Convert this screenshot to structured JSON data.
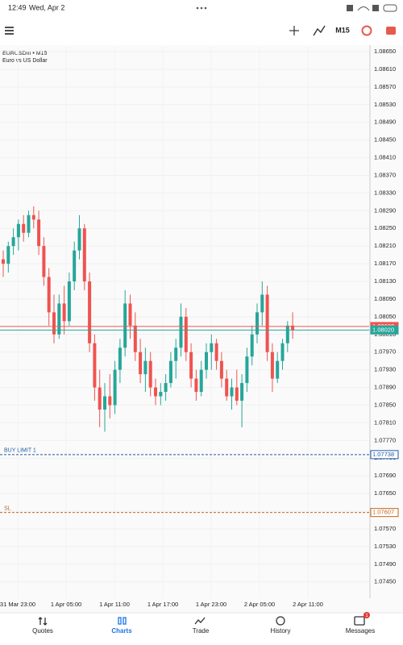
{
  "status_bar": {
    "time": "12:49",
    "date": "Wed, Apr 2"
  },
  "toolbar": {
    "timeframe": "M15"
  },
  "chart": {
    "type": "candlestick",
    "symbol": "EURUSDm • M15",
    "description": "Euro vs US Dollar",
    "up_color": "#26a69a",
    "down_color": "#ef5350",
    "grid": true,
    "ylim": [
      1.07413,
      1.08661
    ],
    "yticks": [
      {
        "value": 1.0865,
        "label": "1.08650"
      },
      {
        "value": 1.0861,
        "label": "1.08610"
      },
      {
        "value": 1.0857,
        "label": "1.08570"
      },
      {
        "value": 1.0853,
        "label": "1.08530"
      },
      {
        "value": 1.0849,
        "label": "1.08490"
      },
      {
        "value": 1.0845,
        "label": "1.08450"
      },
      {
        "value": 1.0841,
        "label": "1.08410"
      },
      {
        "value": 1.0837,
        "label": "1.08370"
      },
      {
        "value": 1.0833,
        "label": "1.08330"
      },
      {
        "value": 1.0829,
        "label": "1.08290"
      },
      {
        "value": 1.0825,
        "label": "1.08250"
      },
      {
        "value": 1.0821,
        "label": "1.08210"
      },
      {
        "value": 1.0817,
        "label": "1.08170"
      },
      {
        "value": 1.0813,
        "label": "1.08130"
      },
      {
        "value": 1.0809,
        "label": "1.08090"
      },
      {
        "value": 1.0805,
        "label": "1.08050"
      },
      {
        "value": 1.0801,
        "label": "1.08010"
      },
      {
        "value": 1.0797,
        "label": "1.07970"
      },
      {
        "value": 1.0793,
        "label": "1.07930"
      },
      {
        "value": 1.0789,
        "label": "1.07890"
      },
      {
        "value": 1.0785,
        "label": "1.07850"
      },
      {
        "value": 1.0781,
        "label": "1.07810"
      },
      {
        "value": 1.0777,
        "label": "1.07770"
      },
      {
        "value": 1.0773,
        "label": "1.07730"
      },
      {
        "value": 1.0769,
        "label": "1.07690"
      },
      {
        "value": 1.0765,
        "label": "1.07650"
      },
      {
        "value": 1.0761,
        "label": "1.07610"
      },
      {
        "value": 1.0757,
        "label": "1.07570"
      },
      {
        "value": 1.0753,
        "label": "1.07530"
      },
      {
        "value": 1.0749,
        "label": "1.07490"
      },
      {
        "value": 1.0745,
        "label": "1.07450"
      }
    ],
    "xticks": [
      "31 Mar 23:00",
      "1 Apr 05:00",
      "1 Apr 11:00",
      "1 Apr 17:00",
      "1 Apr 23:00",
      "2 Apr 05:00",
      "2 Apr 11:00"
    ],
    "candles": [
      [
        1.0818,
        1.082,
        1.0814,
        1.0817
      ],
      [
        1.0817,
        1.0822,
        1.0815,
        1.0821
      ],
      [
        1.0821,
        1.0825,
        1.0819,
        1.0823
      ],
      [
        1.0823,
        1.0827,
        1.082,
        1.0826
      ],
      [
        1.0826,
        1.0828,
        1.0822,
        1.0824
      ],
      [
        1.0824,
        1.0829,
        1.0823,
        1.0828
      ],
      [
        1.0828,
        1.083,
        1.0825,
        1.0827
      ],
      [
        1.0827,
        1.0829,
        1.0819,
        1.0821
      ],
      [
        1.0821,
        1.0823,
        1.0812,
        1.0814
      ],
      [
        1.0814,
        1.0816,
        1.0803,
        1.0806
      ],
      [
        1.0806,
        1.081,
        1.0799,
        1.0801
      ],
      [
        1.0801,
        1.081,
        1.08,
        1.0808
      ],
      [
        1.0808,
        1.0812,
        1.0801,
        1.0804
      ],
      [
        1.0804,
        1.0815,
        1.0803,
        1.0813
      ],
      [
        1.0813,
        1.0822,
        1.0811,
        1.082
      ],
      [
        1.082,
        1.0828,
        1.0818,
        1.0825
      ],
      [
        1.0825,
        1.0826,
        1.0811,
        1.0813
      ],
      [
        1.0813,
        1.0815,
        1.0797,
        1.0799
      ],
      [
        1.0799,
        1.0801,
        1.0786,
        1.0789
      ],
      [
        1.0789,
        1.0793,
        1.078,
        1.0784
      ],
      [
        1.0784,
        1.079,
        1.0779,
        1.0787
      ],
      [
        1.0787,
        1.0792,
        1.0782,
        1.0785
      ],
      [
        1.0785,
        1.0795,
        1.0783,
        1.0793
      ],
      [
        1.0793,
        1.08,
        1.079,
        1.0798
      ],
      [
        1.0798,
        1.0811,
        1.0796,
        1.0808
      ],
      [
        1.0808,
        1.081,
        1.08,
        1.0803
      ],
      [
        1.0803,
        1.0806,
        1.0795,
        1.0797
      ],
      [
        1.0797,
        1.08,
        1.079,
        1.0792
      ],
      [
        1.0792,
        1.0798,
        1.0788,
        1.0795
      ],
      [
        1.0795,
        1.0797,
        1.0787,
        1.0789
      ],
      [
        1.0789,
        1.0791,
        1.0785,
        1.0787
      ],
      [
        1.0787,
        1.079,
        1.0785,
        1.0788
      ],
      [
        1.0788,
        1.0792,
        1.0786,
        1.079
      ],
      [
        1.079,
        1.0797,
        1.0789,
        1.0795
      ],
      [
        1.0795,
        1.08,
        1.0791,
        1.0798
      ],
      [
        1.0798,
        1.0808,
        1.0796,
        1.0805
      ],
      [
        1.0805,
        1.0807,
        1.0795,
        1.0797
      ],
      [
        1.0797,
        1.0799,
        1.0789,
        1.0791
      ],
      [
        1.0791,
        1.0793,
        1.0786,
        1.0788
      ],
      [
        1.0788,
        1.0795,
        1.0787,
        1.0793
      ],
      [
        1.0793,
        1.0799,
        1.0791,
        1.0797
      ],
      [
        1.0797,
        1.0801,
        1.0793,
        1.0799
      ],
      [
        1.0799,
        1.08,
        1.0793,
        1.0795
      ],
      [
        1.0795,
        1.0797,
        1.0789,
        1.0791
      ],
      [
        1.0791,
        1.0793,
        1.0786,
        1.0787
      ],
      [
        1.0787,
        1.0791,
        1.0784,
        1.0789
      ],
      [
        1.0789,
        1.0793,
        1.0785,
        1.0786
      ],
      [
        1.0786,
        1.0792,
        1.078,
        1.079
      ],
      [
        1.079,
        1.0798,
        1.0788,
        1.0796
      ],
      [
        1.0796,
        1.0803,
        1.0794,
        1.0801
      ],
      [
        1.0801,
        1.0808,
        1.0799,
        1.0806
      ],
      [
        1.0806,
        1.0813,
        1.0803,
        1.081
      ],
      [
        1.081,
        1.0812,
        1.0795,
        1.0797
      ],
      [
        1.0797,
        1.0799,
        1.0788,
        1.0791
      ],
      [
        1.0791,
        1.0797,
        1.079,
        1.0795
      ],
      [
        1.0795,
        1.08,
        1.0793,
        1.0799
      ],
      [
        1.0799,
        1.0804,
        1.0797,
        1.0803
      ],
      [
        1.0803,
        1.0806,
        1.08,
        1.0802
      ]
    ],
    "price_lines": [
      {
        "price": 1.08028,
        "color": "#ef5350"
      },
      {
        "price": {
          "value": 1.0802,
          "label": "1.08020"
        },
        "color": "#26a69a"
      },
      {
        "name": "BUY LIMIT 1",
        "price": 1.07738,
        "color": "#1e5aa8"
      },
      {
        "name": "SL",
        "price": 1.07607,
        "color": "#c0651d"
      }
    ]
  },
  "nav": {
    "items": [
      "Quotes",
      "Charts",
      "Trade",
      "History",
      "Messages"
    ],
    "badge": 1
  }
}
